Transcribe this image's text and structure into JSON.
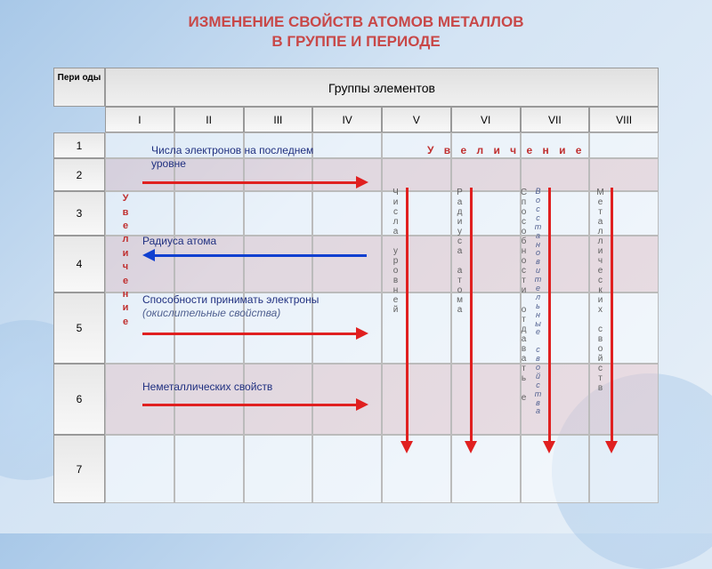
{
  "title": {
    "line1": "ИЗМЕНЕНИЕ СВОЙСТВ АТОМОВ МЕТАЛЛОВ",
    "line2": "В ГРУППЕ И ПЕРИОДЕ",
    "color": "#c84848"
  },
  "table": {
    "periods_header": "Пери оды",
    "groups_header": "Группы элементов",
    "groups": [
      "I",
      "II",
      "III",
      "IV",
      "V",
      "VI",
      "VII",
      "VIII"
    ],
    "periods": [
      "1",
      "2",
      "3",
      "4",
      "5",
      "6",
      "7"
    ],
    "col_width": 77.75,
    "period_row_heights": [
      29,
      37,
      50,
      64,
      80,
      80,
      77
    ],
    "alt_row_bg": "#f4d4d4"
  },
  "labels": {
    "electrons": "Числа электронов на последнем уровне",
    "radius": "Радиуса атома",
    "accept": "Способности принимать электроны",
    "accept_sub": "(окислительные свойства)",
    "nonmetal": "Неметаллических свойств",
    "increase_top": "У в е л и ч е н и е",
    "increase_side": "Увеличение",
    "v_levels": "Числа уровней",
    "v_radius": "Радиуса атома",
    "v_donate": "Способности отдавать е",
    "v_donate_sub": "Восстановительные свойства",
    "v_metallic": "Металлических свойств"
  },
  "colors": {
    "arrow_red": "#e02020",
    "arrow_blue": "#1040d0",
    "increase_text": "#c03030",
    "side_text": "#c03030",
    "label_blue": "#203080",
    "label_italic": "#506090",
    "vtext_gray": "#606060"
  }
}
